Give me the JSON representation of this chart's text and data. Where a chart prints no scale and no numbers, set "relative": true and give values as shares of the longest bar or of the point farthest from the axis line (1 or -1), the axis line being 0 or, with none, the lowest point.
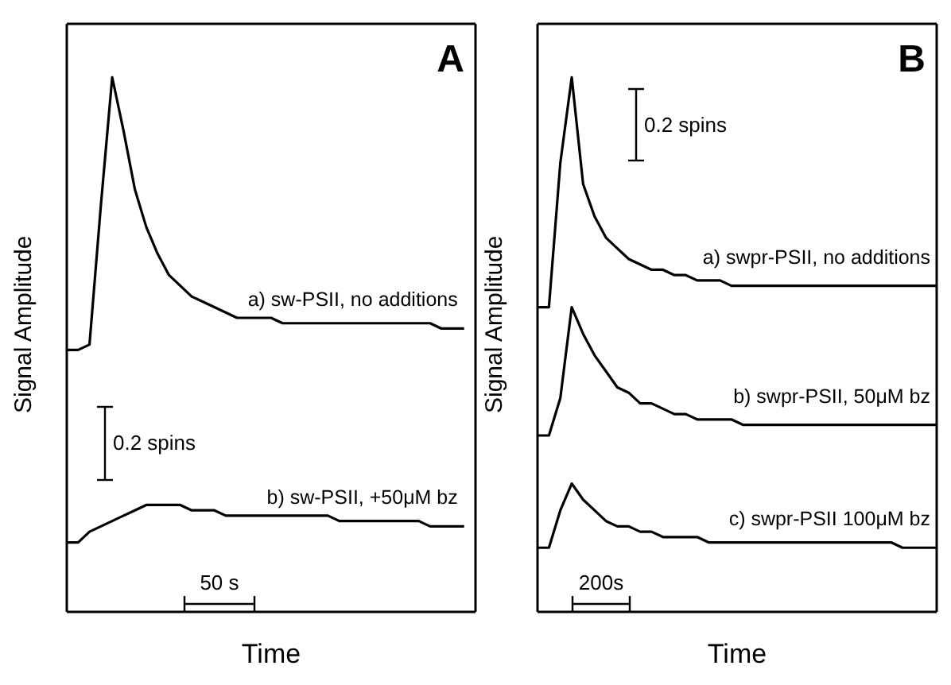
{
  "chart_data": [
    {
      "type": "line",
      "title": "A",
      "xlabel": "Time",
      "ylabel": "Signal Amplitude",
      "relative": true,
      "annotations": [
        "0.2 spins",
        "50 s"
      ],
      "categories": [
        null,
        null,
        null,
        null,
        null,
        null,
        null,
        null,
        null,
        null,
        null,
        null,
        null,
        null,
        null,
        null,
        null,
        null,
        null,
        null,
        null,
        null,
        null,
        null,
        null,
        null,
        null,
        null,
        null,
        null,
        null,
        null,
        null,
        null,
        null,
        null,
        null
      ],
      "series": [
        {
          "name": "a) sw-PSII, no additions",
          "color": "#000000",
          "values": [
            0.49,
            0.49,
            0.5,
            0.76,
            1.0,
            0.9,
            0.79,
            0.72,
            0.67,
            0.63,
            0.61,
            0.59,
            0.58,
            0.57,
            0.56,
            0.55,
            0.55,
            0.55,
            0.55,
            0.54,
            0.54,
            0.54,
            0.54,
            0.54,
            0.54,
            0.54,
            0.54,
            0.54,
            0.54,
            0.54,
            0.54,
            0.54,
            0.54,
            0.53,
            0.53,
            0.53,
            null
          ]
        },
        {
          "name": "b) sw-PSII, +50μM bz",
          "color": "#000000",
          "values": [
            0.13,
            0.13,
            0.15,
            0.16,
            0.17,
            0.18,
            0.19,
            0.2,
            0.2,
            0.2,
            0.2,
            0.19,
            0.19,
            0.19,
            0.18,
            0.18,
            0.18,
            0.18,
            0.18,
            0.18,
            0.18,
            0.18,
            0.18,
            0.18,
            0.17,
            0.17,
            0.17,
            0.17,
            0.17,
            0.17,
            0.17,
            0.17,
            0.16,
            0.16,
            0.16,
            0.16,
            null
          ]
        }
      ]
    },
    {
      "type": "line",
      "title": "B",
      "xlabel": "Time",
      "ylabel": "Signal Amplitude",
      "relative": true,
      "annotations": [
        "0.2 spins",
        "200s"
      ],
      "categories": [
        null,
        null,
        null,
        null,
        null,
        null,
        null,
        null,
        null,
        null,
        null,
        null,
        null,
        null,
        null,
        null,
        null,
        null,
        null,
        null,
        null,
        null,
        null,
        null,
        null,
        null,
        null,
        null,
        null,
        null,
        null,
        null,
        null,
        null,
        null,
        null
      ],
      "series": [
        {
          "name": "a) swpr-PSII, no additions",
          "color": "#000000",
          "values": [
            0.57,
            0.57,
            0.84,
            1.0,
            0.8,
            0.74,
            0.7,
            0.68,
            0.66,
            0.65,
            0.64,
            0.64,
            0.63,
            0.63,
            0.62,
            0.62,
            0.62,
            0.61,
            0.61,
            0.61,
            0.61,
            0.61,
            0.61,
            0.61,
            0.61,
            0.61,
            0.61,
            0.61,
            0.61,
            0.61,
            0.61,
            0.61,
            0.61,
            0.61,
            0.61,
            0.61
          ]
        },
        {
          "name": "b) swpr-PSII, 50μM bz",
          "color": "#000000",
          "values": [
            0.33,
            0.33,
            0.4,
            0.57,
            0.52,
            0.48,
            0.45,
            0.42,
            0.41,
            0.39,
            0.39,
            0.38,
            0.37,
            0.37,
            0.36,
            0.36,
            0.36,
            0.36,
            0.35,
            0.35,
            0.35,
            0.35,
            0.35,
            0.35,
            0.35,
            0.35,
            0.35,
            0.35,
            0.35,
            0.35,
            0.35,
            0.35,
            0.35,
            0.35,
            0.35,
            0.35
          ]
        },
        {
          "name": "c) swpr-PSII 100μM bz",
          "color": "#000000",
          "values": [
            0.12,
            0.12,
            0.19,
            0.24,
            0.21,
            0.19,
            0.17,
            0.16,
            0.16,
            0.15,
            0.15,
            0.14,
            0.14,
            0.14,
            0.14,
            0.13,
            0.13,
            0.13,
            0.13,
            0.13,
            0.13,
            0.13,
            0.13,
            0.13,
            0.13,
            0.13,
            0.13,
            0.13,
            0.13,
            0.13,
            0.13,
            0.13,
            0.12,
            0.12,
            0.12,
            0.12
          ]
        }
      ]
    }
  ]
}
